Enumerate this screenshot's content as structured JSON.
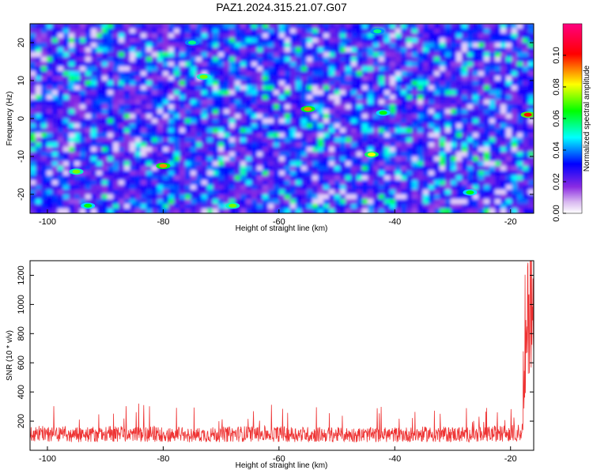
{
  "title": "PAZ1.2024.315.21.07.G07",
  "chart_data": [
    {
      "type": "heatmap",
      "title": "PAZ1.2024.315.21.07.G07",
      "xlabel": "Height of straight line (km)",
      "ylabel": "Frequency (Hz)",
      "xlim": [
        -103,
        -16
      ],
      "ylim": [
        -25,
        25
      ],
      "xticks": [
        -100,
        -80,
        -60,
        -40,
        -20
      ],
      "yticks": [
        20,
        10,
        0,
        -10,
        -20
      ],
      "colorbar": {
        "label": "Normalized spectral amplitude",
        "range": [
          0,
          0.12
        ],
        "ticks": [
          "0.00",
          "0.02",
          "0.04",
          "0.06",
          "0.08",
          "0.10"
        ]
      },
      "colormap": [
        "#ffffff",
        "#8a2be2",
        "#0000ff",
        "#00ffff",
        "#00ff00",
        "#ffff00",
        "#ff0000",
        "#ff0080"
      ],
      "hotspots": [
        {
          "x": -17,
          "y": 1,
          "value": 0.12
        },
        {
          "x": -55,
          "y": 2.5,
          "value": 0.11
        },
        {
          "x": -80,
          "y": -12.5,
          "value": 0.11
        },
        {
          "x": -44,
          "y": -9.5,
          "value": 0.1
        },
        {
          "x": -73,
          "y": 11,
          "value": 0.09
        },
        {
          "x": -95,
          "y": -14,
          "value": 0.09
        },
        {
          "x": -68,
          "y": -23,
          "value": 0.09
        },
        {
          "x": -27,
          "y": -19.5,
          "value": 0.08
        },
        {
          "x": -42,
          "y": 1.5,
          "value": 0.08
        },
        {
          "x": -43,
          "y": 23,
          "value": 0.07
        },
        {
          "x": -75,
          "y": 20,
          "value": 0.07
        },
        {
          "x": -93,
          "y": -23,
          "value": 0.08
        }
      ]
    },
    {
      "type": "line",
      "title": "",
      "xlabel": "Height of straight line (km)",
      "ylabel": "SNR (10 * v/v)",
      "xlim": [
        -103,
        -16
      ],
      "ylim": [
        0,
        1300
      ],
      "xticks": [
        -100,
        -80,
        -60,
        -40,
        -20
      ],
      "yticks": [
        200,
        400,
        600,
        800,
        1000,
        1200
      ],
      "color": "#ee3333",
      "series": [
        {
          "x": [
            -103,
            -95,
            -85,
            -75,
            -65,
            -55,
            -45,
            -35,
            -25,
            -18,
            -17.5,
            -17,
            -16.5,
            -16
          ],
          "y": [
            130,
            125,
            130,
            120,
            130,
            125,
            120,
            125,
            125,
            140,
            600,
            1050,
            1270,
            900
          ]
        }
      ]
    }
  ]
}
